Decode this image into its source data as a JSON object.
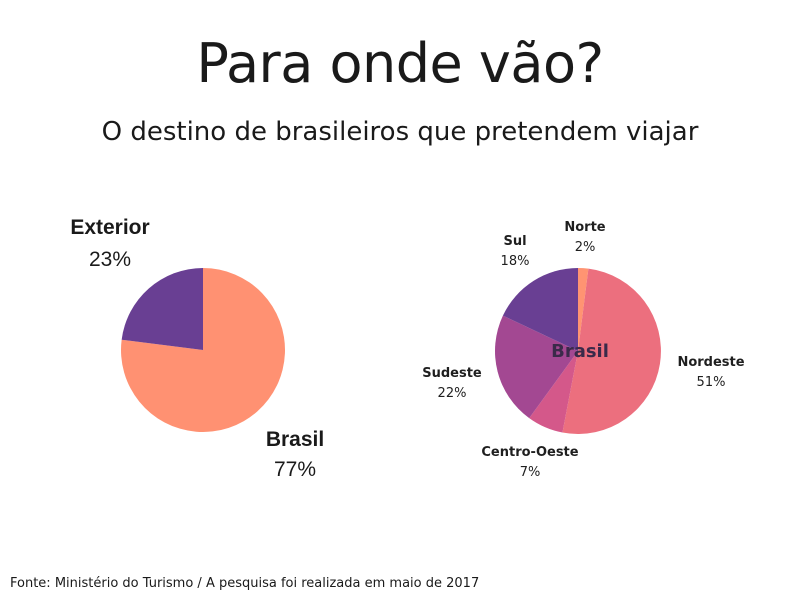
{
  "title": "Para onde vão?",
  "subtitle": "O destino de brasileiros que pretendem viajar",
  "footer": "Fonte: Ministério do Turismo / A pesquisa foi realizada em maio de 2017",
  "chart_data": [
    {
      "type": "pie",
      "title": "",
      "slices": [
        {
          "name": "Brasil",
          "value": 77,
          "label": "77%",
          "color": "#FF9172"
        },
        {
          "name": "Exterior",
          "value": 23,
          "label": "23%",
          "color": "#693F93"
        }
      ]
    },
    {
      "type": "pie",
      "title": "Brasil",
      "slices": [
        {
          "name": "Norte",
          "value": 2,
          "label": "2%",
          "color": "#FF9472"
        },
        {
          "name": "Nordeste",
          "value": 51,
          "label": "51%",
          "color": "#EC6F7E"
        },
        {
          "name": "Centro-Oeste",
          "value": 7,
          "label": "7%",
          "color": "#D4588A"
        },
        {
          "name": "Sudeste",
          "value": 22,
          "label": "22%",
          "color": "#A34892"
        },
        {
          "name": "Sul",
          "value": 18,
          "label": "18%",
          "color": "#693F93"
        }
      ]
    }
  ]
}
